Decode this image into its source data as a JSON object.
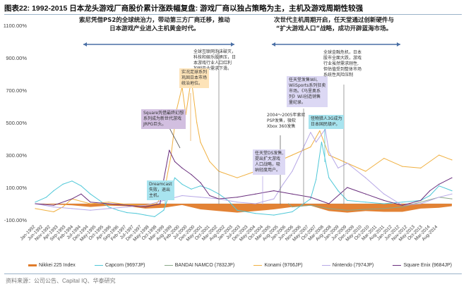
{
  "title": "图表22:  1992-2015 日本龙头游戏厂商股价累计涨跌幅复盘:  游戏厂商以独占策略为主，主机及游戏周期性较强",
  "source": "资料来源：公司公告、Capital IQ、华泰研究",
  "annotations": {
    "ps2_era": [
      "索尼凭借PS2的全球统治力，带动第三方厂商迁移，推动",
      "日本游戏产业进入主机黄金时代。"
    ],
    "next_gen": [
      "次世代主机周期开启，任天堂通过创新硬件与",
      "“扩大游戏人口”战略，成功开辟蓝海市场。"
    ],
    "dotcom": [
      "全球互联网泡沫破灭，",
      "科技和娱乐股承压，日",
      "本游戏行业人口红利",
      "加剧产业需求下滑。"
    ],
    "konami": [
      "实况足球系列",
      "巩固日本市场",
      "统治地位。"
    ],
    "square": [
      "Square凭借最终幻想",
      "系列成为新世代游戏",
      "JRPG巨头。"
    ],
    "dreamcast": [
      "Dreamcast",
      "失败，退出",
      "主机。"
    ],
    "psp_xbox": [
      "2004～2005年索尼",
      "PSP发售，微软",
      "Xbox 360发售"
    ],
    "ds": [
      "任天堂DS发售,",
      "提出扩大游戏",
      "人口战略，吸",
      "纳轻度用户。"
    ],
    "wii": [
      "任天堂发售Wii,",
      "WiiSports系列狂卖",
      "市场。《马里奥系",
      "列》Wii创造销售",
      "量纪录。"
    ],
    "pokemon": [
      "怪物猎人3G成为",
      "日本国民级IP。"
    ],
    "financial": [
      "全球金融危机，日本",
      "股市全面大跌，游戏",
      "行业虽然需求刚性,",
      "但估值受到整体市场",
      "系统性风险压制"
    ]
  },
  "chart_data": {
    "type": "line",
    "title": "1992-2015 日本龙头游戏厂商股价累计涨跌幅复盘",
    "ylim": [
      -100,
      1100
    ],
    "y_ticks": [
      "1100.00%",
      "900.00%",
      "700.00%",
      "500.00%",
      "300.00%",
      "100.00%",
      "-100.00%"
    ],
    "y_tick_values": [
      1100,
      900,
      700,
      500,
      300,
      100,
      -100
    ],
    "x_ticks": [
      "Jan-1992",
      "Jun-1992",
      "Nov-1992",
      "Apr-1993",
      "Sep-1993",
      "Feb-1994",
      "Jul-1994",
      "Dec-1994",
      "May-1995",
      "Oct-1995",
      "Apr-1996",
      "Sep-1996",
      "Feb-1997",
      "Jul-1997",
      "Dec-1997",
      "May-1998",
      "Oct-1998",
      "Mar-1999",
      "Aug-1999",
      "Feb-2000",
      "Jul-2000",
      "Dec-2000",
      "May-2001",
      "Oct-2001",
      "Mar-2002",
      "Aug-2002",
      "Jan-2003",
      "Jul-2003",
      "Dec-2003",
      "May-2004",
      "Oct-2004",
      "Mar-2005",
      "Aug-2005",
      "Jan-2006",
      "Jun-2006",
      "Nov-2006",
      "May-2007",
      "Oct-2007",
      "Mar-2008",
      "Aug-2008",
      "Jan-2009",
      "Jun-2009",
      "Dec-2009",
      "May-2010",
      "Oct-2010",
      "Mar-2011",
      "Aug-2011",
      "Jan-2012",
      "Jun-2012",
      "Nov-2012",
      "May-2013",
      "Oct-2013",
      "Mar-2014",
      "Aug-2014"
    ],
    "x_year_range": [
      1992,
      2014.7
    ],
    "legend_position": "bottom",
    "series": [
      {
        "name": "Nikkei 225 Index",
        "style": "area",
        "color": "#e07b2a",
        "x": [
          1992,
          1993,
          1994,
          1995,
          1996,
          1997,
          1998,
          1999,
          2000,
          2001,
          2002,
          2003,
          2004,
          2005,
          2006,
          2007,
          2008,
          2009,
          2010,
          2011,
          2012,
          2013,
          2014,
          2014.7
        ],
        "values": [
          0,
          -5,
          -10,
          -20,
          -12,
          -15,
          -30,
          -25,
          -8,
          -35,
          -45,
          -55,
          -45,
          -35,
          -20,
          -12,
          -45,
          -55,
          -45,
          -50,
          -50,
          -30,
          -25,
          -15
        ]
      },
      {
        "name": "Capcom (9697JP)",
        "color": "#4fc8d8",
        "x": [
          1992,
          1992.6,
          1993,
          1993.5,
          1994,
          1994.5,
          1995,
          1995.5,
          1996,
          1996.5,
          1997,
          1997.5,
          1998,
          1998.5,
          1999,
          1999.3,
          1999.6,
          2000,
          2000.5,
          2001,
          2001.5,
          2002,
          2002.5,
          2003,
          2004,
          2005,
          2006,
          2006.5,
          2007,
          2007.3,
          2007.6,
          2008,
          2008.5,
          2009,
          2010,
          2011,
          2012,
          2013,
          2013.5,
          2014,
          2014.7
        ],
        "values": [
          10,
          40,
          80,
          120,
          140,
          110,
          60,
          20,
          -20,
          -40,
          -55,
          -60,
          -70,
          -80,
          -40,
          60,
          160,
          120,
          90,
          110,
          90,
          60,
          20,
          -40,
          -60,
          -70,
          -50,
          -10,
          30,
          150,
          380,
          160,
          80,
          20,
          10,
          0,
          10,
          20,
          50,
          110,
          80
        ]
      },
      {
        "name": "BANDAI NAMCO (7832JP)",
        "color": "#8aa889",
        "x": [
          2005.8,
          2006,
          2007,
          2008,
          2009,
          2010,
          2011,
          2012,
          2013,
          2014,
          2014.7
        ],
        "values": [
          0,
          -20,
          -10,
          -30,
          -40,
          -35,
          -30,
          -20,
          10,
          40,
          30
        ]
      },
      {
        "name": "Konami (9766JP)",
        "color": "#f0b040",
        "x": [
          1992,
          1993,
          1993.5,
          1994,
          1995,
          1996,
          1997,
          1998,
          1998.6,
          1999,
          1999.4,
          1999.7,
          2000,
          2000.2,
          2000.5,
          2000.8,
          2001,
          2001.5,
          2002,
          2003,
          2004,
          2005,
          2006,
          2007,
          2007.5,
          2008,
          2009,
          2010,
          2011,
          2012,
          2013,
          2014,
          2014.7
        ],
        "values": [
          -30,
          -50,
          -20,
          30,
          0,
          10,
          -5,
          -10,
          0,
          60,
          300,
          580,
          720,
          550,
          770,
          500,
          380,
          260,
          200,
          160,
          200,
          250,
          300,
          350,
          450,
          300,
          250,
          200,
          280,
          230,
          220,
          300,
          270
        ]
      },
      {
        "name": "Nintendo (7974JP)",
        "color": "#b7a8e6",
        "x": [
          1992,
          1993,
          1994,
          1995,
          1996,
          1997,
          1998,
          1999,
          2000,
          2001,
          2002,
          2003,
          2004,
          2005,
          2005.5,
          2006,
          2006.5,
          2007,
          2007.3,
          2007.8,
          2008,
          2008.5,
          2009,
          2010,
          2011,
          2012,
          2013,
          2014,
          2014.7
        ],
        "values": [
          0,
          -20,
          -30,
          -40,
          -30,
          -20,
          -10,
          20,
          50,
          40,
          30,
          10,
          0,
          30,
          120,
          200,
          320,
          440,
          380,
          460,
          320,
          220,
          250,
          160,
          60,
          -10,
          0,
          40,
          60
        ]
      },
      {
        "name": "Square Enix (9684JP)",
        "color": "#6a2f7e",
        "x": [
          1992,
          1993,
          1994,
          1994.5,
          1995,
          1996,
          1997,
          1998,
          1998.8,
          1999,
          1999.3,
          1999.6,
          2000,
          2000.5,
          2001,
          2001.5,
          2002,
          2003,
          2004,
          2005,
          2006,
          2007,
          2007.5,
          2008,
          2009,
          2010,
          2011,
          2012,
          2013,
          2013.5,
          2014,
          2014.7
        ],
        "values": [
          0,
          -10,
          30,
          60,
          10,
          0,
          -10,
          -20,
          0,
          150,
          330,
          260,
          220,
          180,
          130,
          50,
          30,
          40,
          60,
          80,
          60,
          40,
          20,
          0,
          100,
          60,
          20,
          -10,
          20,
          80,
          120,
          160
        ]
      }
    ]
  }
}
